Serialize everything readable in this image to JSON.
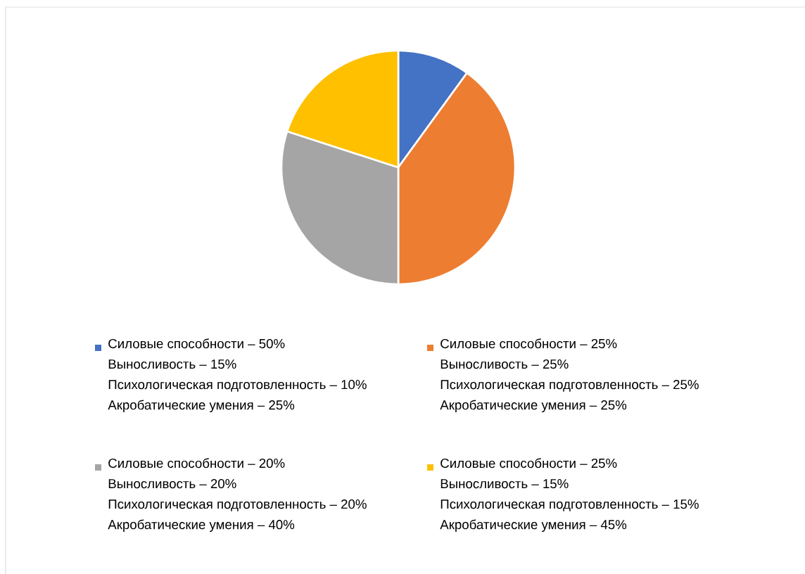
{
  "chart_data": {
    "type": "pie",
    "categories": [
      "Силовые способности – 50%\nВыносливость – 15%\nПсихологическая подготовленность – 10%\nАкробатические умения – 25%",
      "Силовые способности – 25%\nВыносливость – 25%\nПсихологическая подготовленность – 25%\nАкробатические умения – 25%",
      "Силовые способности – 20%\nВыносливость – 20%\nПсихологическая подготовленность – 20%\nАкробатические умения – 40%",
      "Силовые способности – 25%\nВыносливость – 15%\nПсихологическая подготовленность – 15%\nАкробатические умения – 45%"
    ],
    "values": [
      10,
      40,
      30,
      20
    ],
    "colors": [
      "#4472c4",
      "#ed7d31",
      "#a5a5a5",
      "#ffc000"
    ],
    "legend": "bottom"
  }
}
